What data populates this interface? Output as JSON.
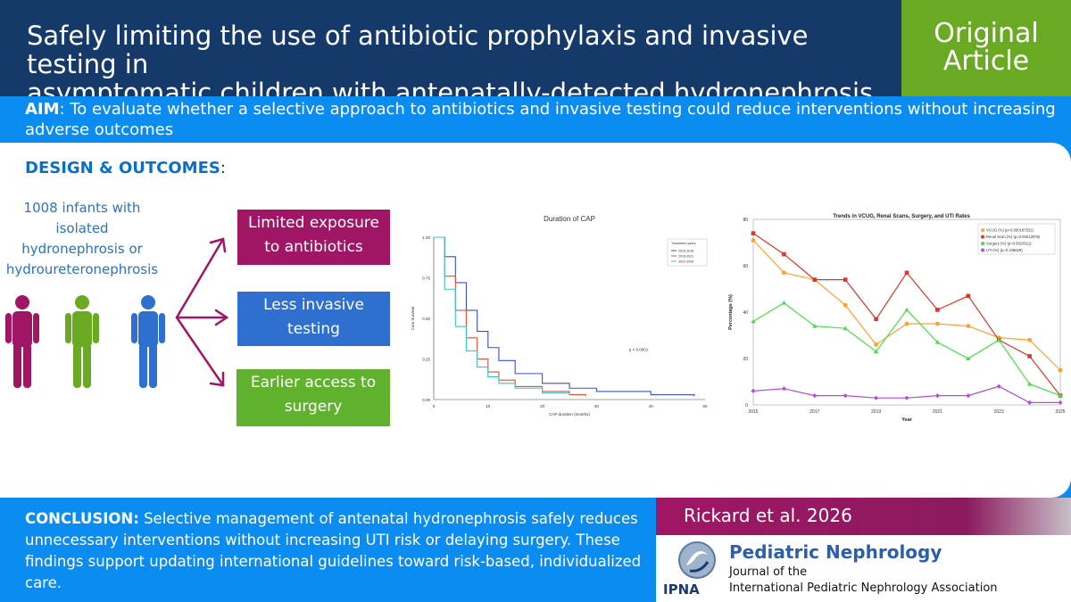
{
  "header": {
    "title_line1": "Safely limiting the use of antibiotic prophylaxis and invasive testing in",
    "title_line2": "asymptomatic children with antenatally-detected hydronephrosis",
    "badge_line1": "Original",
    "badge_line2": "Article"
  },
  "aim": {
    "label": "AIM",
    "text": ": To evaluate whether a selective approach to antibiotics and invasive testing could reduce interventions without increasing adverse outcomes"
  },
  "design": {
    "label": "DESIGN & OUTCOMES",
    "colon": ":",
    "infants": [
      "1008 infants with",
      "isolated",
      "hydronephrosis or",
      "hydroureteronephrosis"
    ],
    "person_colors": [
      "#a01665",
      "#6aaa22",
      "#2e6fd0"
    ],
    "outcomes": [
      {
        "line1": "Limited exposure",
        "line2": "to antibiotics",
        "color": "#a01665"
      },
      {
        "line1": "Less invasive",
        "line2": "testing",
        "color": "#2e6fd0"
      },
      {
        "line1": "Earlier access to",
        "line2": "surgery",
        "color": "#60b12e"
      }
    ]
  },
  "chart_data": [
    {
      "type": "line",
      "title": "Duration of CAP",
      "xlabel": "CAP duration (months)",
      "ylabel": "Cum Survival",
      "xlim": [
        0,
        50
      ],
      "ylim": [
        0,
        1
      ],
      "x_ticks": [
        "0",
        "10",
        "20",
        "30",
        "40",
        "50"
      ],
      "y_ticks": [
        "0.00",
        "0.25",
        "0.50",
        "0.75",
        "1.00"
      ],
      "legend_title": "Treatment years",
      "legend_position": "top-right",
      "annotation": "p < 0.0001",
      "series": [
        {
          "name": "2015-2018",
          "color": "#3a4fd0",
          "x": [
            0,
            2,
            4,
            6,
            8,
            10,
            12,
            15,
            20,
            25,
            30,
            40,
            48
          ],
          "y": [
            1.0,
            0.88,
            0.72,
            0.55,
            0.42,
            0.32,
            0.24,
            0.16,
            0.1,
            0.07,
            0.05,
            0.03,
            0.02
          ]
        },
        {
          "name": "2019-2021",
          "color": "#e0503a",
          "x": [
            0,
            2,
            4,
            6,
            8,
            10,
            12,
            15,
            20,
            25,
            28
          ],
          "y": [
            1.0,
            0.76,
            0.55,
            0.38,
            0.25,
            0.17,
            0.12,
            0.08,
            0.05,
            0.03,
            0.02
          ]
        },
        {
          "name": "2022-2025",
          "color": "#34c7c7",
          "x": [
            0,
            2,
            4,
            6,
            8,
            10,
            12,
            15,
            20,
            25
          ],
          "y": [
            1.0,
            0.68,
            0.45,
            0.3,
            0.2,
            0.14,
            0.1,
            0.07,
            0.04,
            0.03
          ]
        }
      ]
    },
    {
      "type": "line",
      "title": "Trends in VCUG, Renal Scans, Surgery, and UTI Rates",
      "xlabel": "Year",
      "ylabel": "Percentage (%)",
      "xlim": [
        2015,
        2025
      ],
      "ylim": [
        0,
        80
      ],
      "x_ticks": [
        "2015",
        "2017",
        "2019",
        "2021",
        "2023",
        "2025"
      ],
      "y_ticks": [
        "0",
        "20",
        "40",
        "60",
        "80"
      ],
      "legend_position": "top-right",
      "categories": [
        2015,
        2016,
        2017,
        2018,
        2019,
        2020,
        2021,
        2022,
        2023,
        2024,
        2025
      ],
      "series": [
        {
          "name": "VCUG (%) (p=0.000187531)",
          "color": "#ffa033",
          "values": [
            71,
            57,
            54,
            43,
            26,
            35,
            35,
            34,
            29,
            28,
            15
          ]
        },
        {
          "name": "Renal Scan (%) (p=0.00012878)",
          "color": "#e0352a",
          "values": [
            74,
            65,
            54,
            54,
            37,
            57,
            41,
            47,
            28,
            21,
            4
          ]
        },
        {
          "name": "Surgery (%) (p=0.0023511)",
          "color": "#45e045",
          "values": [
            36,
            44,
            34,
            33,
            23,
            41,
            27,
            20,
            28,
            9,
            4
          ]
        },
        {
          "name": "UTI (%) (p=0.106629)",
          "color": "#b04ae0",
          "values": [
            6,
            7,
            4,
            4,
            3,
            3,
            4,
            4,
            8,
            1,
            1
          ]
        }
      ]
    }
  ],
  "conclusion": {
    "label": "CONCLUSION:",
    "lines": [
      " Selective management of antenatal hydronephrosis safely reduces",
      "unnecessary interventions without increasing UTI risk or delaying surgery. These",
      "findings support updating international guidelines toward risk-based, individualized",
      "care."
    ]
  },
  "citation": "Rickard et al. 2026",
  "journal": {
    "name": "Pediatric Nephrology",
    "sub1": "Journal of the",
    "sub2": "International Pediatric Nephrology Association",
    "logo_text": "IPNA"
  }
}
